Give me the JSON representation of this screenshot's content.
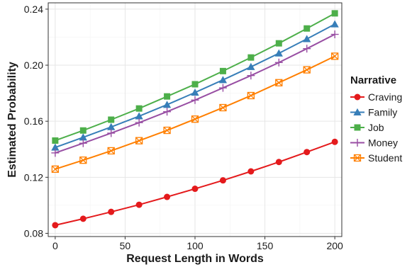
{
  "chart_data": {
    "type": "line",
    "title": "",
    "xlabel": "Request Length in Words",
    "ylabel": "Estimated Probability",
    "xlim": [
      -5,
      205
    ],
    "ylim": [
      0.0777,
      0.2445
    ],
    "x_ticks": [
      0,
      50,
      100,
      150,
      200
    ],
    "x_tick_labels": [
      "0",
      "50",
      "100",
      "150",
      "200"
    ],
    "y_ticks": [
      0.08,
      0.12,
      0.16,
      0.2,
      0.24
    ],
    "y_tick_labels": [
      "0.08",
      "0.12",
      "0.16",
      "0.20",
      "0.24"
    ],
    "grid": true,
    "legend": {
      "title": "Narrative",
      "position": "right"
    },
    "x": [
      0,
      20,
      40,
      60,
      80,
      100,
      120,
      140,
      160,
      180,
      200
    ],
    "series": [
      {
        "name": "Craving",
        "color": "#e41a1c",
        "marker": "circle",
        "values": [
          0.0858,
          0.0904,
          0.0953,
          0.1004,
          0.106,
          0.1118,
          0.1178,
          0.1242,
          0.1309,
          0.138,
          0.1453
        ]
      },
      {
        "name": "Family",
        "color": "#377eb8",
        "marker": "triangle",
        "values": [
          0.1413,
          0.1485,
          0.1559,
          0.1636,
          0.1718,
          0.1805,
          0.1895,
          0.1988,
          0.2085,
          0.2187,
          0.2293
        ]
      },
      {
        "name": "Job",
        "color": "#4daf4a",
        "marker": "square",
        "values": [
          0.1462,
          0.1534,
          0.1611,
          0.1691,
          0.1777,
          0.1864,
          0.1958,
          0.2055,
          0.2156,
          0.2262,
          0.237
        ]
      },
      {
        "name": "Money",
        "color": "#984ea3",
        "marker": "plus",
        "values": [
          0.1374,
          0.1443,
          0.1515,
          0.159,
          0.1668,
          0.1751,
          0.1838,
          0.1926,
          0.2019,
          0.2118,
          0.222
        ]
      },
      {
        "name": "Student",
        "color": "#ff7f00",
        "marker": "boxed-x",
        "values": [
          0.1258,
          0.1322,
          0.1389,
          0.1461,
          0.1535,
          0.1615,
          0.1697,
          0.1783,
          0.1875,
          0.1967,
          0.2064
        ]
      }
    ]
  }
}
